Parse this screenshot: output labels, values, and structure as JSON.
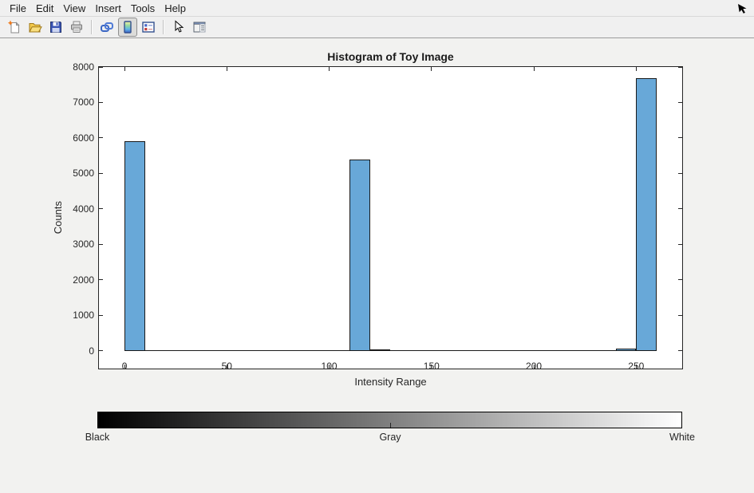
{
  "window": {
    "background": "#f2f2f0",
    "kind": "figure-window"
  },
  "menubar": {
    "items": [
      "File",
      "Edit",
      "View",
      "Insert",
      "Tools",
      "Help"
    ]
  },
  "toolbar": {
    "buttons": [
      {
        "icon": "new-figure-icon",
        "active": false
      },
      {
        "icon": "open-file-icon",
        "active": false
      },
      {
        "icon": "save-figure-icon",
        "active": false
      },
      {
        "icon": "print-figure-icon",
        "active": false
      },
      {
        "icon": "link-plot-icon",
        "active": false
      },
      {
        "icon": "insert-colorbar-icon",
        "active": true
      },
      {
        "icon": "insert-legend-icon",
        "active": false
      },
      {
        "icon": "edit-plot-icon",
        "active": false
      },
      {
        "icon": "plot-tools-icon",
        "active": false
      }
    ]
  },
  "cursor": {
    "icon": "mouse-cursor-se-icon"
  },
  "chart_data": {
    "type": "bar",
    "title": "Histogram of Toy Image",
    "xlabel": "Intensity Range",
    "ylabel": "Counts",
    "xlim": [
      -12.5,
      272.5
    ],
    "ylim": [
      -495,
      8000
    ],
    "x_ticks": [
      0,
      50,
      100,
      150,
      200,
      250
    ],
    "y_ticks": [
      0,
      1000,
      2000,
      3000,
      4000,
      5000,
      6000,
      7000,
      8000
    ],
    "bins": [
      {
        "range": [
          0,
          10
        ],
        "count": 5900
      },
      {
        "range": [
          110,
          120
        ],
        "count": 5400
      },
      {
        "range": [
          120,
          130
        ],
        "count": 50
      },
      {
        "range": [
          240,
          250
        ],
        "count": 75
      },
      {
        "range": [
          250,
          260
        ],
        "count": 7690
      }
    ],
    "baseline_extent": [
      0,
      260
    ],
    "bar_color": "#68a8d8",
    "bar_edge_color": "#1a1a1a",
    "grid": false,
    "legend": null,
    "tick_direction": "in",
    "box": true
  },
  "colorbar": {
    "orientation": "horizontal",
    "gradient_from": "#000000",
    "gradient_to": "#ffffff",
    "labels": [
      "Black",
      "Gray",
      "White"
    ]
  }
}
